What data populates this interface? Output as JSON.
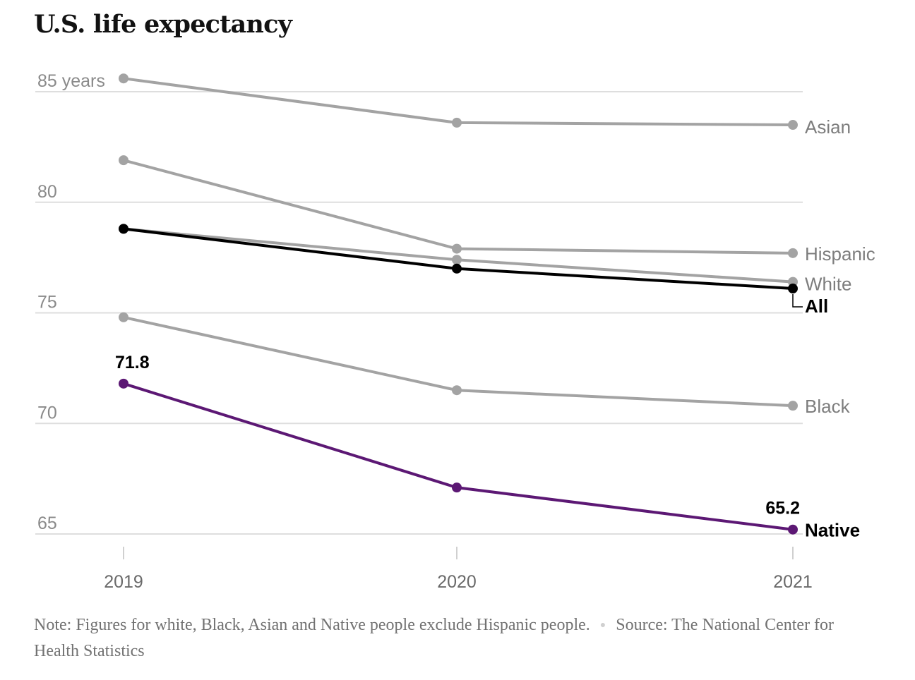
{
  "title": "U.S. life expectancy",
  "footer": {
    "note": "Note: Figures for white, Black, Asian and Native people exclude Hispanic people.",
    "source": "Source: The National Center for Health Statistics"
  },
  "chart_data": {
    "type": "line",
    "x": [
      "2019",
      "2020",
      "2021"
    ],
    "ylim": [
      63.5,
      86.5
    ],
    "y_ticks": [
      85,
      80,
      75,
      70,
      65
    ],
    "y_tick_labels": [
      "85 years",
      "80",
      "75",
      "70",
      "65"
    ],
    "grid": true,
    "series": [
      {
        "name": "Asian",
        "values": [
          85.6,
          83.6,
          83.5
        ],
        "color": "#a3a3a3",
        "emphasis": false
      },
      {
        "name": "Hispanic",
        "values": [
          81.9,
          77.9,
          77.7
        ],
        "color": "#a3a3a3",
        "emphasis": false
      },
      {
        "name": "White",
        "values": [
          78.8,
          77.4,
          76.4
        ],
        "color": "#a3a3a3",
        "emphasis": false
      },
      {
        "name": "Black",
        "values": [
          74.8,
          71.5,
          70.8
        ],
        "color": "#a3a3a3",
        "emphasis": false
      },
      {
        "name": "All",
        "values": [
          78.8,
          77.0,
          76.1
        ],
        "color": "#000000",
        "emphasis": true
      },
      {
        "name": "Native",
        "values": [
          71.8,
          67.1,
          65.2
        ],
        "color": "#5c1874",
        "emphasis": true
      }
    ],
    "annotations": [
      {
        "series": "Native",
        "x": "2019",
        "text": "71.8"
      },
      {
        "series": "Native",
        "x": "2021",
        "text": "65.2"
      }
    ]
  }
}
